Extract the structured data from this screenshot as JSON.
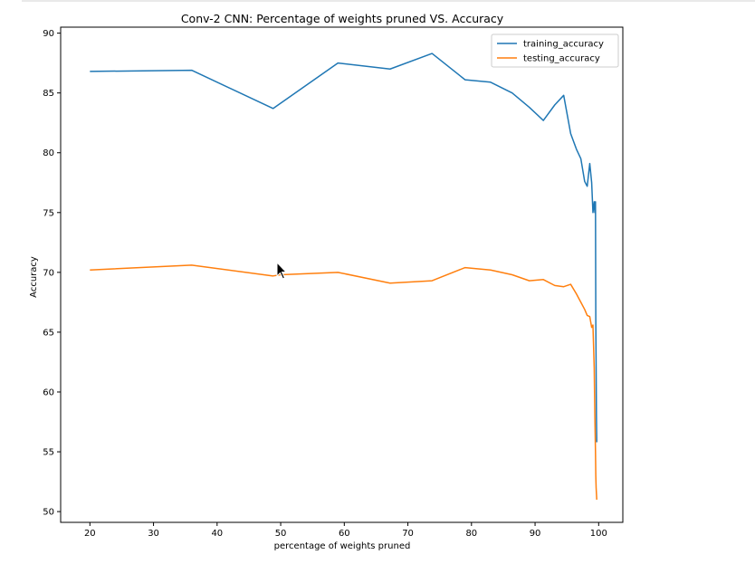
{
  "chart_data": {
    "type": "line",
    "title": "Conv-2 CNN: Percentage of weights pruned VS. Accuracy",
    "xlabel": "percentage of weights pruned",
    "ylabel": "Accuracy",
    "xlim": [
      15.4,
      103.8
    ],
    "ylim": [
      49.1,
      90.5
    ],
    "xticks": [
      20,
      30,
      40,
      50,
      60,
      70,
      80,
      90,
      100
    ],
    "yticks": [
      50,
      55,
      60,
      65,
      70,
      75,
      80,
      85,
      90
    ],
    "grid": false,
    "legend_position": "top-right",
    "series": [
      {
        "name": "training_accuracy",
        "color": "#1f77b4",
        "x": [
          20,
          36,
          48.8,
          59,
          67.2,
          73.8,
          79,
          83,
          86.4,
          89.1,
          91.3,
          93.1,
          94.5,
          95.6,
          96.5,
          97.2,
          97.8,
          98.2,
          98.6,
          98.9,
          99.1,
          99.3,
          99.4,
          99.5,
          99.55,
          99.6,
          99.65,
          99.7
        ],
        "y": [
          86.8,
          86.9,
          83.7,
          87.5,
          87.0,
          88.3,
          86.1,
          85.9,
          85.0,
          83.8,
          82.7,
          84.0,
          84.8,
          81.6,
          80.3,
          79.5,
          77.6,
          77.2,
          79.1,
          77.5,
          75.0,
          75.9,
          75.0,
          75.9,
          66.0,
          62.0,
          58.0,
          55.8
        ]
      },
      {
        "name": "testing_accuracy",
        "color": "#ff7f0e",
        "x": [
          20,
          36,
          48.8,
          50,
          59,
          67.2,
          73.8,
          79,
          83,
          86.4,
          89.1,
          91.3,
          93.1,
          94.5,
          95.6,
          96.5,
          97.2,
          97.8,
          98.2,
          98.6,
          98.9,
          99.1,
          99.3,
          99.4,
          99.5,
          99.55,
          99.6,
          99.65,
          99.7
        ],
        "y": [
          70.2,
          70.6,
          69.7,
          69.8,
          70.0,
          69.1,
          69.3,
          70.4,
          70.2,
          69.8,
          69.3,
          69.4,
          68.9,
          68.8,
          69.0,
          68.2,
          67.5,
          66.9,
          66.4,
          66.3,
          65.4,
          65.6,
          62.0,
          58.0,
          55.0,
          53.0,
          52.0,
          51.5,
          51.0
        ]
      }
    ]
  },
  "colors": {
    "axes": "#000000",
    "background": "#ffffff",
    "legend_border": "#cccccc"
  }
}
